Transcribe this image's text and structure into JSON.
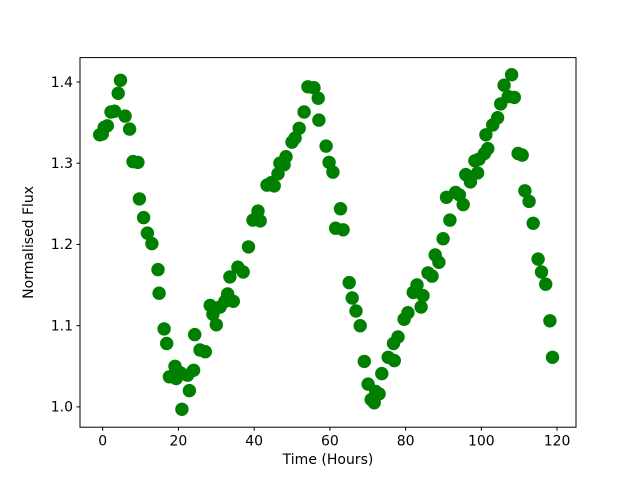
{
  "figure": {
    "background_color": "#ffffff",
    "plot_border_color": "#000000"
  },
  "chart_data": {
    "type": "scatter",
    "title": "",
    "xlabel": "Time (Hours)",
    "ylabel": "Normalised Flux",
    "xlim": [
      -6,
      125
    ],
    "ylim": [
      0.975,
      1.43
    ],
    "xticks": [
      0,
      20,
      40,
      60,
      80,
      100,
      120
    ],
    "xtick_labels": [
      "0",
      "20",
      "40",
      "60",
      "80",
      "100",
      "120"
    ],
    "yticks": [
      1.0,
      1.1,
      1.2,
      1.3,
      1.4
    ],
    "ytick_labels": [
      "1.0",
      "1.1",
      "1.2",
      "1.3",
      "1.4"
    ],
    "grid": false,
    "legend_position": "none",
    "marker_shape": "circle",
    "marker_color": "#008000",
    "marker_radius_px": 6.7,
    "series_name": "normalised-flux-light-curve",
    "x": [
      -0.8,
      -0.1,
      0.4,
      1.2,
      2.2,
      3.1,
      4.1,
      4.7,
      5.9,
      7.1,
      8.0,
      9.3,
      9.7,
      10.8,
      11.8,
      13.0,
      14.6,
      14.9,
      16.2,
      16.9,
      17.6,
      19.1,
      19.4,
      20.5,
      20.9,
      22.4,
      22.9,
      24.0,
      24.3,
      25.7,
      27.1,
      28.4,
      29.1,
      30.0,
      31.0,
      32.3,
      33.0,
      33.6,
      34.5,
      35.7,
      37.1,
      38.5,
      39.7,
      40.5,
      41.0,
      41.6,
      43.4,
      44.5,
      45.3,
      46.3,
      46.8,
      47.9,
      48.4,
      50.0,
      50.8,
      51.9,
      53.2,
      54.2,
      55.8,
      56.9,
      57.1,
      59.0,
      59.8,
      60.8,
      61.5,
      62.8,
      63.5,
      65.1,
      65.9,
      66.9,
      68.0,
      69.1,
      70.1,
      70.9,
      71.7,
      72.1,
      73.0,
      73.7,
      75.4,
      76.8,
      77.0,
      78.0,
      79.6,
      80.6,
      82.0,
      83.0,
      84.1,
      84.6,
      85.9,
      87.0,
      87.8,
      88.8,
      89.9,
      90.8,
      91.7,
      93.2,
      94.2,
      95.2,
      95.9,
      97.1,
      98.3,
      99.0,
      99.4,
      100.8,
      101.2,
      101.7,
      103.0,
      104.3,
      105.1,
      106.0,
      107.1,
      108.0,
      108.7,
      109.7,
      110.8,
      111.5,
      112.6,
      113.7,
      115.0,
      115.9,
      117.0,
      118.1,
      118.8
    ],
    "y": [
      1.335,
      1.336,
      1.344,
      1.346,
      1.363,
      1.364,
      1.386,
      1.402,
      1.358,
      1.342,
      1.302,
      1.301,
      1.256,
      1.233,
      1.214,
      1.201,
      1.169,
      1.14,
      1.096,
      1.078,
      1.037,
      1.05,
      1.035,
      1.042,
      0.997,
      1.039,
      1.02,
      1.045,
      1.089,
      1.07,
      1.068,
      1.125,
      1.114,
      1.101,
      1.123,
      1.13,
      1.139,
      1.16,
      1.13,
      1.172,
      1.166,
      1.197,
      1.23,
      1.232,
      1.241,
      1.229,
      1.273,
      1.276,
      1.272,
      1.287,
      1.3,
      1.298,
      1.308,
      1.326,
      1.331,
      1.343,
      1.363,
      1.394,
      1.393,
      1.38,
      1.353,
      1.321,
      1.301,
      1.289,
      1.22,
      1.244,
      1.218,
      1.153,
      1.134,
      1.118,
      1.1,
      1.056,
      1.028,
      1.009,
      1.005,
      1.019,
      1.016,
      1.041,
      1.061,
      1.078,
      1.057,
      1.086,
      1.108,
      1.116,
      1.141,
      1.15,
      1.123,
      1.137,
      1.165,
      1.161,
      1.187,
      1.178,
      1.207,
      1.258,
      1.23,
      1.264,
      1.261,
      1.249,
      1.286,
      1.277,
      1.303,
      1.288,
      1.305,
      1.312,
      1.335,
      1.318,
      1.347,
      1.356,
      1.373,
      1.396,
      1.382,
      1.409,
      1.381,
      1.312,
      1.31,
      1.266,
      1.253,
      1.226,
      1.182,
      1.166,
      1.151,
      1.106,
      1.061
    ]
  }
}
